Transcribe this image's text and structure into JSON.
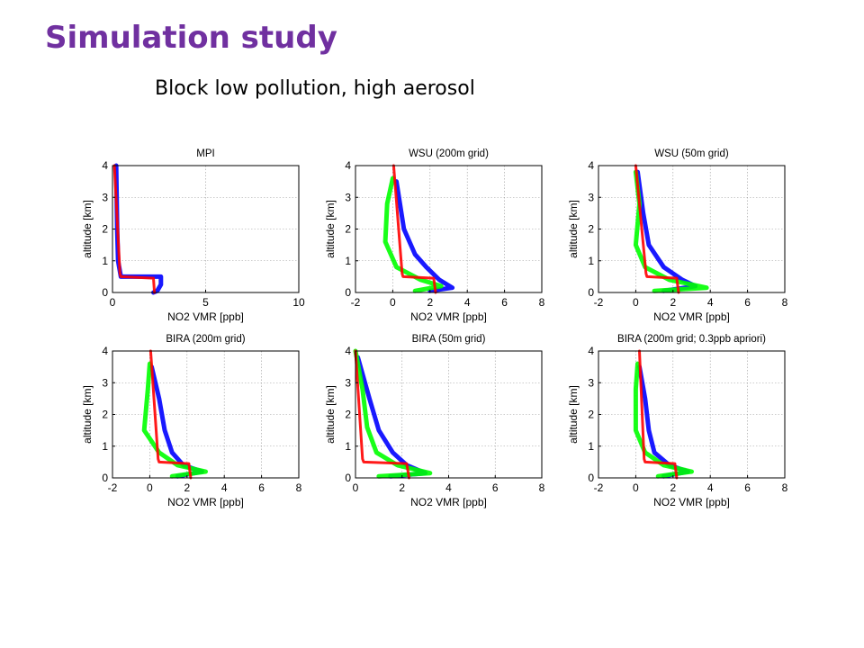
{
  "slide": {
    "title": "Simulation study",
    "subtitle": "Block low pollution, high aerosol"
  },
  "colors": {
    "title": "#7030a0",
    "series_blue": "#0000ff",
    "series_green": "#00ff00",
    "series_red": "#ff0000"
  },
  "chart_data": [
    {
      "type": "line",
      "title": "MPI",
      "xlabel": "NO2 VMR [ppb]",
      "ylabel": "altitude [km]",
      "xlim": [
        0,
        10
      ],
      "ylim": [
        0,
        4
      ],
      "xticks": [
        0,
        5,
        10
      ],
      "yticks": [
        0,
        1,
        2,
        3,
        4
      ],
      "grid": true,
      "series": [
        {
          "color": "#0000ff",
          "x": [
            0.2,
            0.25,
            0.3,
            0.45,
            2.6,
            2.6,
            2.4,
            2.2
          ],
          "y": [
            4,
            2.0,
            1.0,
            0.5,
            0.5,
            0.25,
            0.05,
            0
          ]
        },
        {
          "color": "#ff0000",
          "x": [
            0.1,
            0.4,
            0.45,
            2.2,
            2.25
          ],
          "y": [
            4,
            0.6,
            0.5,
            0.45,
            0
          ]
        }
      ]
    },
    {
      "type": "line",
      "title": "WSU (200m grid)",
      "xlabel": "NO2 VMR [ppb]",
      "ylabel": "altitude [km]",
      "xlim": [
        -2,
        8
      ],
      "ylim": [
        0,
        4
      ],
      "xticks": [
        -2,
        0,
        2,
        4,
        6,
        8
      ],
      "yticks": [
        0,
        1,
        2,
        3,
        4
      ],
      "grid": true,
      "series": [
        {
          "color": "#0000ff",
          "x": [
            0.2,
            0.6,
            1.2,
            1.8,
            2.5,
            3.2,
            2.0
          ],
          "y": [
            3.5,
            2.0,
            1.2,
            0.8,
            0.4,
            0.15,
            0.05
          ]
        },
        {
          "color": "#00ff00",
          "x": [
            0,
            -0.3,
            -0.4,
            0.2,
            1.5,
            2.6,
            1.2
          ],
          "y": [
            3.6,
            2.8,
            1.6,
            0.8,
            0.4,
            0.2,
            0.05
          ]
        },
        {
          "color": "#ff0000",
          "x": [
            0.05,
            0.5,
            0.55,
            2.2,
            2.3
          ],
          "y": [
            4,
            0.6,
            0.5,
            0.45,
            0
          ]
        }
      ]
    },
    {
      "type": "line",
      "title": "WSU (50m grid)",
      "xlabel": "NO2 VMR [ppb]",
      "ylabel": "altitude [km]",
      "xlim": [
        -2,
        8
      ],
      "ylim": [
        0,
        4
      ],
      "xticks": [
        -2,
        0,
        2,
        4,
        6,
        8
      ],
      "yticks": [
        0,
        1,
        2,
        3,
        4
      ],
      "grid": true,
      "series": [
        {
          "color": "#0000ff",
          "x": [
            0.1,
            0.4,
            0.7,
            1.5,
            2.5,
            3.2,
            1.5
          ],
          "y": [
            3.8,
            2.5,
            1.5,
            0.8,
            0.4,
            0.2,
            0.05
          ]
        },
        {
          "color": "#00ff00",
          "x": [
            0.0,
            0.2,
            0.0,
            0.5,
            1.8,
            3.8,
            1.0
          ],
          "y": [
            3.8,
            2.8,
            1.5,
            0.8,
            0.4,
            0.15,
            0.05
          ]
        },
        {
          "color": "#ff0000",
          "x": [
            0.0,
            0.55,
            0.6,
            2.2,
            2.3
          ],
          "y": [
            4,
            0.6,
            0.5,
            0.45,
            0
          ]
        }
      ]
    },
    {
      "type": "line",
      "title": "BIRA (200m grid)",
      "xlabel": "NO2 VMR [ppb]",
      "ylabel": "altitude [km]",
      "xlim": [
        -2,
        8
      ],
      "ylim": [
        0,
        4
      ],
      "xticks": [
        -2,
        0,
        2,
        4,
        6,
        8
      ],
      "yticks": [
        0,
        1,
        2,
        3,
        4
      ],
      "grid": true,
      "series": [
        {
          "color": "#0000ff",
          "x": [
            0.1,
            0.5,
            0.8,
            1.2,
            1.8,
            2.8,
            1.5
          ],
          "y": [
            3.5,
            2.5,
            1.5,
            0.8,
            0.4,
            0.2,
            0.05
          ]
        },
        {
          "color": "#00ff00",
          "x": [
            0.0,
            -0.1,
            -0.3,
            0.5,
            1.5,
            3.0,
            1.2
          ],
          "y": [
            3.6,
            2.8,
            1.5,
            0.8,
            0.4,
            0.2,
            0.05
          ]
        },
        {
          "color": "#ff0000",
          "x": [
            0.05,
            0.45,
            0.5,
            2.1,
            2.2
          ],
          "y": [
            4,
            0.6,
            0.5,
            0.45,
            0
          ]
        }
      ]
    },
    {
      "type": "line",
      "title": "BIRA (50m grid)",
      "xlabel": "NO2 VMR [ppb]",
      "ylabel": "altitude [km]",
      "xlim": [
        0,
        8
      ],
      "ylim": [
        0,
        4
      ],
      "xticks": [
        0,
        2,
        4,
        6,
        8
      ],
      "yticks": [
        0,
        1,
        2,
        3,
        4
      ],
      "grid": true,
      "series": [
        {
          "color": "#0000ff",
          "x": [
            0.1,
            0.6,
            1.0,
            1.6,
            2.2,
            3.0,
            1.5
          ],
          "y": [
            3.8,
            2.5,
            1.5,
            0.8,
            0.4,
            0.15,
            0.05
          ]
        },
        {
          "color": "#00ff00",
          "x": [
            0.0,
            0.3,
            0.5,
            0.9,
            1.8,
            3.2,
            1.0
          ],
          "y": [
            4,
            2.8,
            1.6,
            0.8,
            0.4,
            0.15,
            0.05
          ]
        },
        {
          "color": "#ff0000",
          "x": [
            0.0,
            0.3,
            0.35,
            2.2,
            2.3
          ],
          "y": [
            4,
            0.6,
            0.5,
            0.45,
            0
          ]
        }
      ]
    },
    {
      "type": "line",
      "title": "BIRA (200m grid; 0.3ppb apriori)",
      "xlabel": "NO2 VMR [ppb]",
      "ylabel": "altitude [km]",
      "xlim": [
        -2,
        8
      ],
      "ylim": [
        0,
        4
      ],
      "xticks": [
        -2,
        0,
        2,
        4,
        6,
        8
      ],
      "yticks": [
        0,
        1,
        2,
        3,
        4
      ],
      "grid": true,
      "series": [
        {
          "color": "#0000ff",
          "x": [
            0.2,
            0.5,
            0.7,
            1.0,
            1.8,
            2.8,
            1.5
          ],
          "y": [
            3.5,
            2.5,
            1.5,
            0.8,
            0.4,
            0.2,
            0.05
          ]
        },
        {
          "color": "#00ff00",
          "x": [
            0.1,
            0.0,
            0.0,
            0.5,
            1.5,
            3.0,
            1.2
          ],
          "y": [
            3.6,
            2.8,
            1.5,
            0.8,
            0.4,
            0.2,
            0.05
          ]
        },
        {
          "color": "#ff0000",
          "x": [
            0.2,
            0.45,
            0.5,
            2.1,
            2.2
          ],
          "y": [
            4,
            0.6,
            0.5,
            0.45,
            0
          ]
        }
      ]
    }
  ]
}
